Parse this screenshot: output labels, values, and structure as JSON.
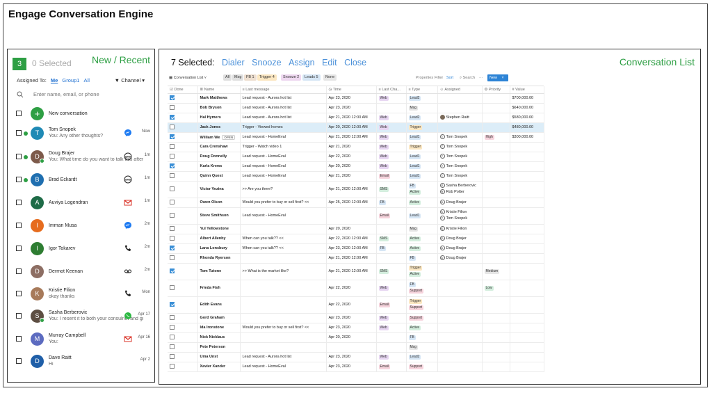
{
  "app_title": "Engage Conversation Engine",
  "left": {
    "count": "3",
    "selected_label": "0 Selected",
    "heading": "New / Recent",
    "assigned_to_label": "Assigned To:",
    "assigned_options": [
      "Me",
      "Group1",
      "All"
    ],
    "channel_label": "Channel",
    "search_placeholder": "Enter name, email, or phone",
    "items": [
      {
        "name": "New conversation",
        "sub": "",
        "time": "",
        "initial": "+",
        "color": "#2e9f44",
        "unread": false,
        "channel": "",
        "online": false
      },
      {
        "name": "Tom Snopek",
        "sub": "You: Any other thoughts?",
        "time": "Now",
        "initial": "T",
        "color": "#1f8ab5",
        "unread": true,
        "channel": "messenger",
        "online": false
      },
      {
        "name": "Doug Brajer",
        "sub": "You: What time do you want to talk this afternoon?",
        "time": "1m",
        "initial": "D",
        "color": "#7d5a4a",
        "unread": true,
        "channel": "sms",
        "online": true
      },
      {
        "name": "Brad Eckardt",
        "sub": "",
        "time": "1m",
        "initial": "B",
        "color": "#1f6fb0",
        "unread": true,
        "channel": "sms",
        "online": false
      },
      {
        "name": "Auviya Logendran",
        "sub": "",
        "time": "1m",
        "initial": "A",
        "color": "#1e6b47",
        "unread": false,
        "channel": "gmail",
        "online": false
      },
      {
        "name": "Imman Musa",
        "sub": "",
        "time": "2m",
        "initial": "I",
        "color": "#e66c1e",
        "unread": false,
        "channel": "messenger",
        "online": false
      },
      {
        "name": "Igor Tokarev",
        "sub": "",
        "time": "2m",
        "initial": "I",
        "color": "#2e7d32",
        "unread": false,
        "channel": "phone",
        "online": false
      },
      {
        "name": "Dermot Keenan",
        "sub": "",
        "time": "2m",
        "initial": "D",
        "color": "#8d6e63",
        "unread": false,
        "channel": "voicemail",
        "online": false
      },
      {
        "name": "Kristie Filion",
        "sub": "okay thanks",
        "time": "Mon",
        "initial": "K",
        "color": "#a77a5a",
        "unread": false,
        "channel": "phone",
        "online": false
      },
      {
        "name": "Sasha Berberovic",
        "sub": "You: I resent it to both your consulnet and gmail",
        "time": "Apr 17",
        "initial": "S",
        "color": "#5d4e42",
        "unread": false,
        "channel": "whatsapp",
        "online": true
      },
      {
        "name": "Murray Campbell",
        "sub": "You:",
        "time": "Apr 16",
        "initial": "M",
        "color": "#5c6bc0",
        "unread": false,
        "channel": "gmail",
        "online": false
      },
      {
        "name": "Dave Raitt",
        "sub": "Hi",
        "time": "Apr 2",
        "initial": "D",
        "color": "#1f5fa8",
        "unread": false,
        "channel": "",
        "online": false
      }
    ]
  },
  "right": {
    "selected_label": "7 Selected:",
    "actions": [
      "Dialer",
      "Snooze",
      "Assign",
      "Edit",
      "Close"
    ],
    "heading": "Conversation List",
    "view_name": "Conversation List",
    "filter_chips": [
      {
        "label": "All",
        "color": "#e0e0e0"
      },
      {
        "label": "Msg",
        "color": "#e0e0e0"
      },
      {
        "label": "FB 1",
        "color": "#eedfd0"
      },
      {
        "label": "Trigger 4",
        "color": "#fbe7c2"
      },
      {
        "label": "Snooze 2",
        "color": "#eed8f0"
      },
      {
        "label": "Leads 5",
        "color": "#d6e6f5"
      },
      {
        "label": "None",
        "color": "#e6e6e6"
      }
    ],
    "toolbar": {
      "properties": "Properties",
      "filter": "Filter",
      "sort": "Sort",
      "search": "Search",
      "more": "···",
      "new": "New"
    },
    "columns": [
      "Done",
      "Name",
      "Last message",
      "Time",
      "Last Cha...",
      "Type",
      "Assigned",
      "Priority",
      "Value"
    ],
    "rows": [
      {
        "done": true,
        "name": "Mark Matthews",
        "msg": "Lead request - Aurora hot list",
        "time": "Apr 23, 2020",
        "ch": [
          "Web"
        ],
        "type": [
          "Lead2"
        ],
        "assigned": [],
        "priority": "",
        "value": "$700,000.00"
      },
      {
        "done": false,
        "name": "Bob Bryson",
        "msg": "Lead request - Aurora hot list",
        "time": "Apr 23, 2020",
        "ch": [],
        "type": [
          "Msg"
        ],
        "assigned": [],
        "priority": "",
        "value": "$640,000.00"
      },
      {
        "done": true,
        "name": "Hal Hymers",
        "msg": "Lead request - Aurora hot list",
        "time": "Apr 21, 2020 12:00 AM",
        "ch": [
          "Web"
        ],
        "type": [
          "Lead2"
        ],
        "assigned": [
          {
            "n": "Stephen Raitt",
            "photo": true
          }
        ],
        "priority": "",
        "value": "$580,000.00"
      },
      {
        "done": false,
        "name": "Jack Jones",
        "msg": "Trigger - Viewed homes",
        "time": "Apr 20, 2020 12:00 AM",
        "ch": [
          "Web"
        ],
        "type": [
          "Trigger"
        ],
        "assigned": [],
        "priority": "",
        "value": "$480,000.00",
        "hl": true
      },
      {
        "done": true,
        "name": "William We",
        "open": "OPEN",
        "msg": "Lead request - HomeEval",
        "time": "Apr 21, 2020 12:00 AM",
        "ch": [
          "Web"
        ],
        "type": [
          "Lead1"
        ],
        "assigned": [
          {
            "n": "Tom Snopek",
            "i": "T"
          }
        ],
        "priority": "High",
        "value": "$300,000.00"
      },
      {
        "done": false,
        "name": "Cara Crenshaw",
        "msg": "Trigger - Watch video 1",
        "time": "Apr 21, 2020",
        "ch": [
          "Web"
        ],
        "type": [
          "Trigger"
        ],
        "assigned": [
          {
            "n": "Tom Snopek",
            "i": "T"
          }
        ],
        "priority": "",
        "value": ""
      },
      {
        "done": false,
        "name": "Doug Donnelly",
        "msg": "Lead request - HomeEval",
        "time": "Apr 22, 2020",
        "ch": [
          "Web"
        ],
        "type": [
          "Lead1"
        ],
        "assigned": [
          {
            "n": "Tom Snopek",
            "i": "T"
          }
        ],
        "priority": "",
        "value": ""
      },
      {
        "done": true,
        "name": "Karla Krews",
        "msg": "Lead request - HomeEval",
        "time": "Apr 20, 2020",
        "ch": [
          "Web"
        ],
        "type": [
          "Lead1"
        ],
        "assigned": [
          {
            "n": "Tom Snopek",
            "i": "T"
          }
        ],
        "priority": "",
        "value": ""
      },
      {
        "done": false,
        "name": "Quinn Quest",
        "msg": "Lead request - HomeEval",
        "time": "Apr 21, 2020",
        "ch": [
          "Email"
        ],
        "type": [
          "Lead1"
        ],
        "assigned": [
          {
            "n": "Tom Snopek",
            "i": "T"
          }
        ],
        "priority": "",
        "value": ""
      },
      {
        "done": false,
        "name": "Victor Vezina",
        "msg": ">> Are you there?",
        "time": "Apr 21, 2020 12:00 AM",
        "ch": [
          "SMS"
        ],
        "type": [
          "FB",
          "Active"
        ],
        "assigned": [
          {
            "n": "Sasha Berberovic",
            "i": "S"
          },
          {
            "n": "Rob Potter",
            "i": "R"
          }
        ],
        "priority": "",
        "value": "",
        "tall": true
      },
      {
        "done": false,
        "name": "Owen Olson",
        "msg": "Would you prefer to buy or sell first? <<",
        "time": "Apr 25, 2020 12:00 AM",
        "ch": [
          "FB"
        ],
        "type": [
          "Active"
        ],
        "assigned": [
          {
            "n": "Doug Brajer",
            "i": "D"
          }
        ],
        "priority": "",
        "value": ""
      },
      {
        "done": false,
        "name": "Steve Smithson",
        "msg": "Lead request - HomeEval",
        "time": "",
        "ch": [
          "Email"
        ],
        "type": [
          "Lead1"
        ],
        "assigned": [
          {
            "n": "Kristie Filion",
            "i": "K"
          },
          {
            "n": "Tom Snopek",
            "i": "T"
          }
        ],
        "priority": "",
        "value": "",
        "tall": true
      },
      {
        "done": false,
        "name": "Yul Yellowstone",
        "msg": "",
        "time": "Apr 20, 2020",
        "ch": [],
        "type": [
          "Msg"
        ],
        "assigned": [
          {
            "n": "Kristie Filion",
            "i": "K"
          }
        ],
        "priority": "",
        "value": ""
      },
      {
        "done": false,
        "name": "Albert Allenby",
        "msg": "When can you talk?? <<",
        "time": "Apr 22, 2020 12:00 AM",
        "ch": [
          "SMS"
        ],
        "type": [
          "Active"
        ],
        "assigned": [
          {
            "n": "Doug Brajer",
            "i": "D"
          }
        ],
        "priority": "",
        "value": ""
      },
      {
        "done": true,
        "name": "Lana Lonsbury",
        "msg": "When can you talk?? <<",
        "time": "Apr 23, 2020 12:00 AM",
        "ch": [
          "FB"
        ],
        "type": [
          "Active"
        ],
        "assigned": [
          {
            "n": "Doug Brajer",
            "i": "D"
          }
        ],
        "priority": "",
        "value": ""
      },
      {
        "done": false,
        "name": "Rhonda Ryerson",
        "msg": "",
        "time": "Apr 21, 2020 12:00 AM",
        "ch": [],
        "type": [
          "FB"
        ],
        "assigned": [
          {
            "n": "Doug Brajer",
            "i": "D"
          }
        ],
        "priority": "",
        "value": ""
      },
      {
        "done": true,
        "name": "Tom Tutone",
        "msg": ">> What is the market like?",
        "time": "Apr 21, 2020 12:00 AM",
        "ch": [
          "SMS"
        ],
        "type": [
          "Trigger",
          "Active"
        ],
        "assigned": [],
        "priority": "Medium",
        "value": "",
        "tall": true
      },
      {
        "done": false,
        "name": "Frieda Fish",
        "msg": "",
        "time": "Apr 22, 2020",
        "ch": [
          "Web"
        ],
        "type": [
          "FB",
          "Support"
        ],
        "assigned": [],
        "priority": "Low",
        "value": "",
        "tall": true
      },
      {
        "done": true,
        "name": "Edith Evans",
        "msg": "",
        "time": "Apr 22, 2020",
        "ch": [
          "Email"
        ],
        "type": [
          "Trigger",
          "Support"
        ],
        "assigned": [],
        "priority": "",
        "value": "",
        "tall": true
      },
      {
        "done": false,
        "name": "Gord Graham",
        "msg": "",
        "time": "Apr 23, 2020",
        "ch": [
          "Web"
        ],
        "type": [
          "Support"
        ],
        "assigned": [],
        "priority": "",
        "value": ""
      },
      {
        "done": false,
        "name": "Ida Ironstone",
        "msg": "Would you prefer to buy or sell first? <<",
        "time": "Apr 23, 2020",
        "ch": [
          "Web"
        ],
        "type": [
          "Active"
        ],
        "assigned": [],
        "priority": "",
        "value": ""
      },
      {
        "done": false,
        "name": "Nick Nicklaus",
        "msg": "",
        "time": "Apr 20, 2020",
        "ch": [],
        "type": [
          "FB"
        ],
        "assigned": [],
        "priority": "",
        "value": ""
      },
      {
        "done": false,
        "name": "Pete Peterson",
        "msg": "",
        "time": "",
        "ch": [],
        "type": [
          "Msg"
        ],
        "assigned": [],
        "priority": "",
        "value": ""
      },
      {
        "done": false,
        "name": "Uma Unst",
        "msg": "Lead request - Aurora hot list",
        "time": "Apr 23, 2020",
        "ch": [
          "Web"
        ],
        "type": [
          "Lead2"
        ],
        "assigned": [],
        "priority": "",
        "value": ""
      },
      {
        "done": false,
        "name": "Xavier Xander",
        "msg": "Lead request - HomeEval",
        "time": "Apr 23, 2020",
        "ch": [
          "Email"
        ],
        "type": [
          "Support"
        ],
        "assigned": [],
        "priority": "",
        "value": ""
      }
    ]
  },
  "colors": {
    "accent_green": "#2e9f44",
    "action_blue": "#4a90d9",
    "chip_web": "#e7d6f2",
    "chip_email": "#f6d3dc",
    "chip_sms": "#d4eede",
    "chip_fb": "#d6e6f5",
    "chip_msg": "#e6e6e6",
    "chip_lead": "#d6e6f5",
    "chip_trigger": "#fbe7c2",
    "chip_active": "#d4eede",
    "chip_support": "#f6d3dc",
    "chip_high": "#f6d3dc",
    "chip_medium": "#e6e6e6",
    "chip_low": "#d4eede"
  }
}
